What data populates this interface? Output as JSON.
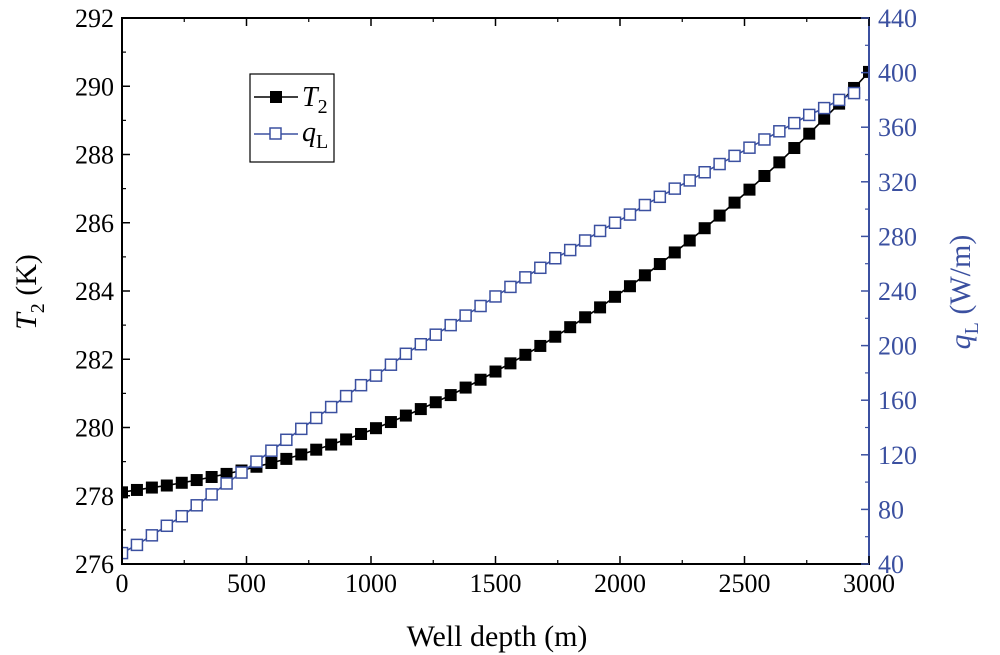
{
  "chart_data": {
    "type": "line",
    "xlabel": "Well depth (m)",
    "xlim": [
      0,
      3000
    ],
    "xticks": [
      0,
      500,
      1000,
      1500,
      2000,
      2500,
      3000
    ],
    "ylabel_left": {
      "var": "T",
      "sub": "2",
      "unit": " (K)"
    },
    "ylim_left": [
      276,
      292
    ],
    "yticks_left": [
      276,
      278,
      280,
      282,
      284,
      286,
      288,
      290,
      292
    ],
    "ylabel_right": {
      "var": "q",
      "sub": "L",
      "unit": " (W/m)"
    },
    "ylim_right": [
      40,
      440
    ],
    "yticks_right": [
      40,
      80,
      120,
      160,
      200,
      240,
      280,
      320,
      360,
      400,
      440
    ],
    "colors": {
      "T2": "#000000",
      "qL": "#3b50a0",
      "frame": "#000000"
    },
    "legend": {
      "position": "top-left",
      "entries": [
        {
          "key": "T2",
          "var": "T",
          "sub": "2",
          "marker": "filled-square"
        },
        {
          "key": "qL",
          "var": "q",
          "sub": "L",
          "marker": "open-square"
        }
      ]
    },
    "series": [
      {
        "key": "T2",
        "name": "T2",
        "axis": "left",
        "x": [
          0,
          60,
          120,
          180,
          240,
          300,
          360,
          420,
          480,
          540,
          600,
          660,
          720,
          780,
          840,
          900,
          960,
          1020,
          1080,
          1140,
          1200,
          1260,
          1320,
          1380,
          1440,
          1500,
          1560,
          1620,
          1680,
          1740,
          1800,
          1860,
          1920,
          1980,
          2040,
          2100,
          2160,
          2220,
          2280,
          2340,
          2400,
          2460,
          2520,
          2580,
          2640,
          2700,
          2760,
          2820,
          2880,
          2940,
          3000
        ],
        "values": [
          278.1,
          278.17,
          278.24,
          278.3,
          278.38,
          278.46,
          278.55,
          278.64,
          278.74,
          278.85,
          278.96,
          279.08,
          279.21,
          279.35,
          279.5,
          279.65,
          279.81,
          279.98,
          280.16,
          280.35,
          280.54,
          280.74,
          280.95,
          281.17,
          281.4,
          281.64,
          281.88,
          282.13,
          282.39,
          282.66,
          282.94,
          283.23,
          283.52,
          283.83,
          284.14,
          284.46,
          284.79,
          285.13,
          285.48,
          285.84,
          286.21,
          286.59,
          286.97,
          287.37,
          287.77,
          288.19,
          288.61,
          289.05,
          289.49,
          289.95,
          290.42
        ]
      },
      {
        "key": "qL",
        "name": "qL",
        "axis": "right",
        "x": [
          0,
          60,
          120,
          180,
          240,
          300,
          360,
          420,
          480,
          540,
          600,
          660,
          720,
          780,
          840,
          900,
          960,
          1020,
          1080,
          1140,
          1200,
          1260,
          1320,
          1380,
          1440,
          1500,
          1560,
          1620,
          1680,
          1740,
          1800,
          1860,
          1920,
          1980,
          2040,
          2100,
          2160,
          2220,
          2280,
          2340,
          2400,
          2460,
          2520,
          2580,
          2640,
          2700,
          2760,
          2820,
          2880,
          2940
        ],
        "values": [
          48,
          54,
          61,
          68,
          75,
          83,
          91,
          99,
          107,
          115,
          123,
          131,
          139,
          147,
          155,
          163,
          171,
          178,
          186,
          194,
          201,
          208,
          215,
          222,
          229,
          236,
          243,
          250,
          257,
          264,
          270,
          277,
          284,
          290,
          296,
          303,
          309,
          315,
          321,
          327,
          333,
          339,
          345,
          351,
          357,
          363,
          369,
          374,
          380,
          385
        ]
      }
    ]
  }
}
